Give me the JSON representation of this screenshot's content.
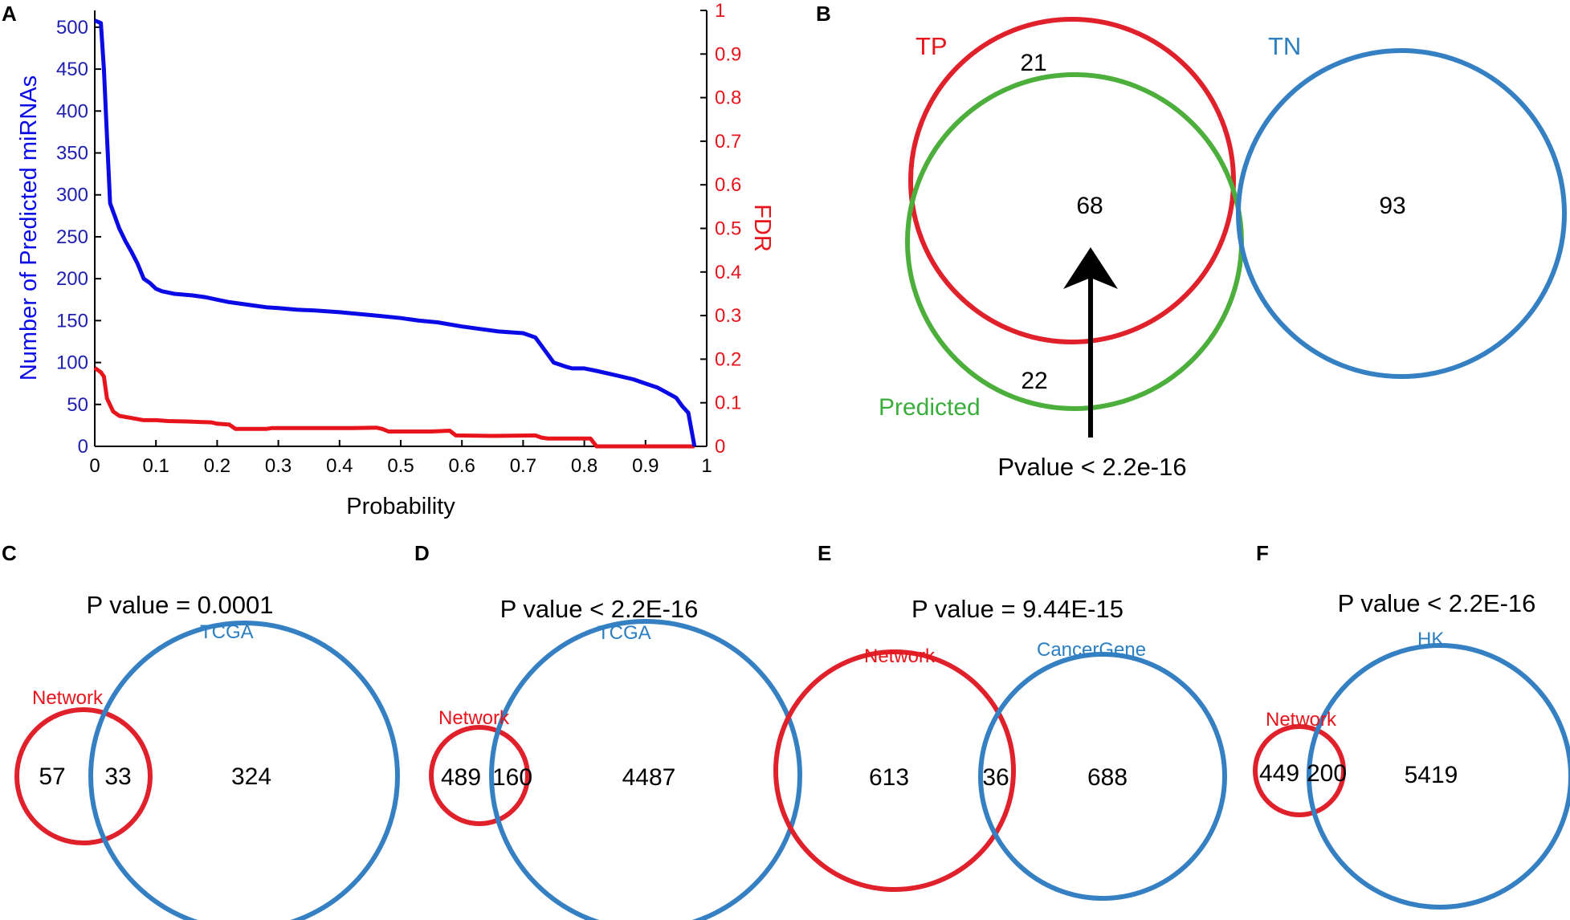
{
  "colors": {
    "blue_line": "#0a0ae6",
    "red_line": "#e8141c",
    "left_axis_text": "#2020b0",
    "right_axis_text": "#e8141c",
    "venn_red": "#e0202a",
    "venn_blue": "#3580c3",
    "venn_green": "#4caf3c"
  },
  "panel_labels": {
    "A": "A",
    "B": "B",
    "C": "C",
    "D": "D",
    "E": "E",
    "F": "F"
  },
  "chart_data": [
    {
      "panel": "A",
      "type": "line",
      "xlabel": "Probability",
      "ylabel_left": "Number of Predicted miRNAs",
      "ylabel_right": "FDR",
      "xlim": [
        0,
        1
      ],
      "ylim_left": [
        0,
        520
      ],
      "ylim_right": [
        0,
        1
      ],
      "xticks": [
        "0",
        "0.1",
        "0.2",
        "0.3",
        "0.4",
        "0.5",
        "0.6",
        "0.7",
        "0.8",
        "0.9",
        "1"
      ],
      "yticks_left": [
        "0",
        "50",
        "100",
        "150",
        "200",
        "250",
        "300",
        "350",
        "400",
        "450",
        "500"
      ],
      "yticks_right": [
        "0",
        "0.1",
        "0.2",
        "0.3",
        "0.4",
        "0.5",
        "0.6",
        "0.7",
        "0.8",
        "0.9",
        "1"
      ],
      "series": [
        {
          "name": "Number of Predicted miRNAs",
          "axis": "left",
          "x": [
            0,
            0.01,
            0.015,
            0.02,
            0.025,
            0.03,
            0.04,
            0.05,
            0.06,
            0.07,
            0.08,
            0.09,
            0.1,
            0.11,
            0.13,
            0.16,
            0.18,
            0.2,
            0.22,
            0.24,
            0.26,
            0.28,
            0.3,
            0.33,
            0.36,
            0.4,
            0.43,
            0.46,
            0.5,
            0.53,
            0.56,
            0.6,
            0.63,
            0.66,
            0.7,
            0.72,
            0.73,
            0.75,
            0.77,
            0.78,
            0.8,
            0.82,
            0.85,
            0.88,
            0.9,
            0.92,
            0.93,
            0.95,
            0.96,
            0.97,
            0.98
          ],
          "values": [
            508,
            505,
            450,
            370,
            290,
            280,
            260,
            245,
            232,
            218,
            200,
            195,
            188,
            185,
            182,
            180,
            178,
            175,
            172,
            170,
            168,
            166,
            165,
            163,
            162,
            160,
            158,
            156,
            153,
            150,
            148,
            143,
            140,
            137,
            135,
            130,
            120,
            100,
            95,
            93,
            93,
            90,
            85,
            80,
            75,
            70,
            66,
            58,
            48,
            40,
            0
          ]
        },
        {
          "name": "FDR",
          "axis": "right",
          "x": [
            0,
            0.01,
            0.015,
            0.02,
            0.03,
            0.04,
            0.06,
            0.08,
            0.1,
            0.12,
            0.15,
            0.19,
            0.2,
            0.22,
            0.23,
            0.24,
            0.28,
            0.29,
            0.31,
            0.36,
            0.42,
            0.46,
            0.47,
            0.48,
            0.5,
            0.55,
            0.58,
            0.59,
            0.65,
            0.72,
            0.73,
            0.74,
            0.81,
            0.82,
            0.85,
            0.9,
            0.95,
            0.98
          ],
          "values": [
            0.18,
            0.17,
            0.16,
            0.11,
            0.08,
            0.07,
            0.065,
            0.06,
            0.06,
            0.058,
            0.057,
            0.055,
            0.052,
            0.05,
            0.04,
            0.04,
            0.04,
            0.042,
            0.042,
            0.042,
            0.042,
            0.043,
            0.04,
            0.034,
            0.034,
            0.034,
            0.036,
            0.025,
            0.024,
            0.025,
            0.02,
            0.018,
            0.018,
            0,
            0,
            0,
            0,
            0
          ]
        }
      ]
    },
    {
      "panel": "B",
      "type": "venn",
      "sets": {
        "tp": "TP",
        "tn": "TN",
        "predicted": "Predicted"
      },
      "counts": {
        "tp_only": "21",
        "intersection": "68",
        "predicted_only": "22",
        "tn": "93"
      },
      "pvalue": "Pvalue < 2.2e-16"
    },
    {
      "panel": "C",
      "type": "venn",
      "pvalue": "P value = 0.0001",
      "set_a": "Network",
      "set_b": "TCGA",
      "counts": {
        "a_only": "57",
        "overlap": "33",
        "b_only": "324"
      }
    },
    {
      "panel": "D",
      "type": "venn",
      "pvalue": "P value < 2.2E-16",
      "set_a": "Network",
      "set_b": "TCGA",
      "counts": {
        "a_only": "489",
        "overlap": "160",
        "b_only": "4487"
      }
    },
    {
      "panel": "E",
      "type": "venn",
      "pvalue": "P value = 9.44E-15",
      "set_a": "Network",
      "set_b": "CancerGene",
      "counts": {
        "a_only": "613",
        "overlap": "36",
        "b_only": "688"
      }
    },
    {
      "panel": "F",
      "type": "venn",
      "pvalue": "P value < 2.2E-16",
      "set_a": "Network",
      "set_b": "HK",
      "counts": {
        "a_only": "449",
        "overlap": "200",
        "b_only": "5419"
      }
    }
  ]
}
